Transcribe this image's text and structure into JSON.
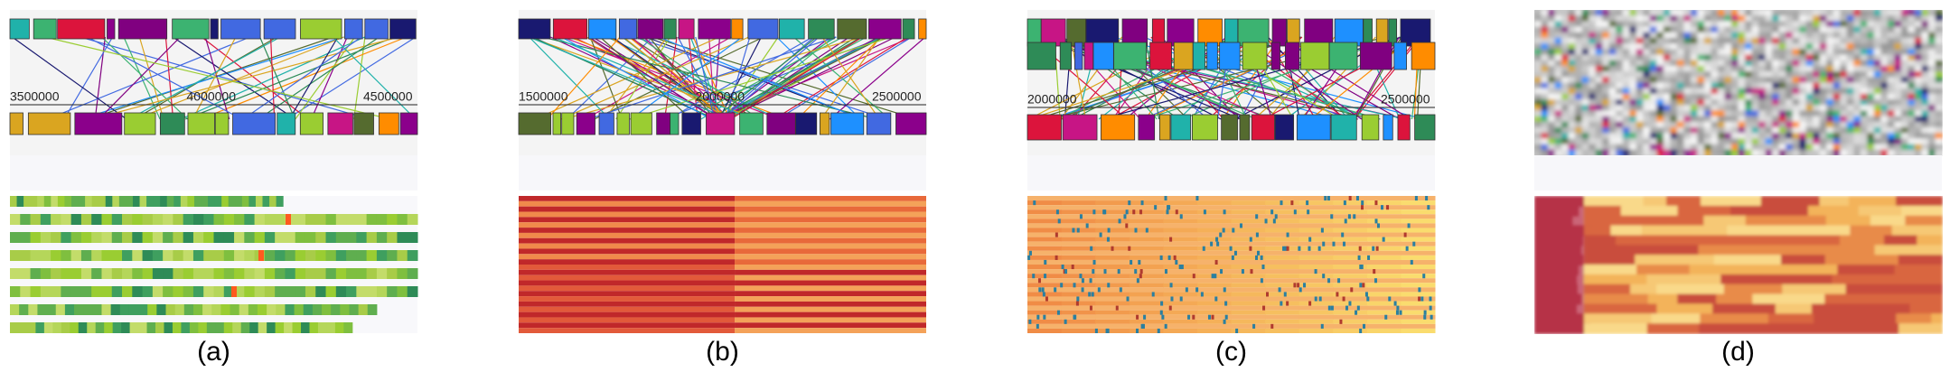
{
  "panels": [
    {
      "label": "(a)",
      "ticks": [
        "3500000",
        "4000000",
        "4500000"
      ]
    },
    {
      "label": "(b)",
      "ticks": [
        "1500000",
        "2000000",
        "2500000"
      ]
    },
    {
      "label": "(c)",
      "ticks": [
        "2000000",
        "2500000"
      ]
    },
    {
      "label": "(d)"
    }
  ]
}
